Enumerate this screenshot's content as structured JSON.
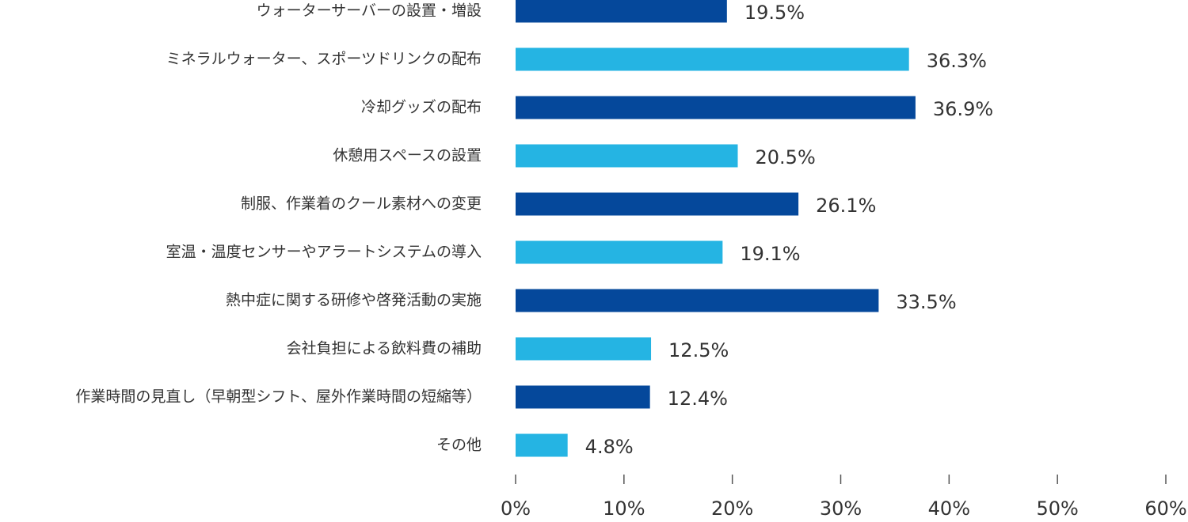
{
  "chart_data": {
    "type": "hbar",
    "categories": [
      "ウォーターサーバーの設置・増設",
      "ミネラルウォーター、スポーツドリンクの配布",
      "冷却グッズの配布",
      "休憩用スペースの設置",
      "制服、作業着のクール素材への変更",
      "室温・温度センサーやアラートシステムの導入",
      "熱中症に関する研修や啓発活動の実施",
      "会社負担による飲料費の補助",
      "作業時間の見直し（早朝型シフト、屋外作業時間の短縮等）",
      "その他"
    ],
    "values": [
      19.5,
      36.3,
      36.9,
      20.5,
      26.1,
      19.1,
      33.5,
      12.5,
      12.4,
      4.8
    ],
    "value_labels": [
      "19.5%",
      "36.3%",
      "36.9%",
      "20.5%",
      "26.1%",
      "19.1%",
      "33.5%",
      "12.5%",
      "12.4%",
      "4.8%"
    ],
    "colors": [
      "#05489b",
      "#25b4e3",
      "#05489b",
      "#25b4e3",
      "#05489b",
      "#25b4e3",
      "#05489b",
      "#25b4e3",
      "#05489b",
      "#25b4e3"
    ],
    "xlim": [
      0,
      60
    ],
    "xticks": [
      {
        "value": 0,
        "label": "0%"
      },
      {
        "value": 10,
        "label": "10%"
      },
      {
        "value": 20,
        "label": "20%"
      },
      {
        "value": 30,
        "label": "30%"
      },
      {
        "value": 40,
        "label": "40%"
      },
      {
        "value": 50,
        "label": "50%"
      },
      {
        "value": 60,
        "label": "60%"
      }
    ]
  }
}
